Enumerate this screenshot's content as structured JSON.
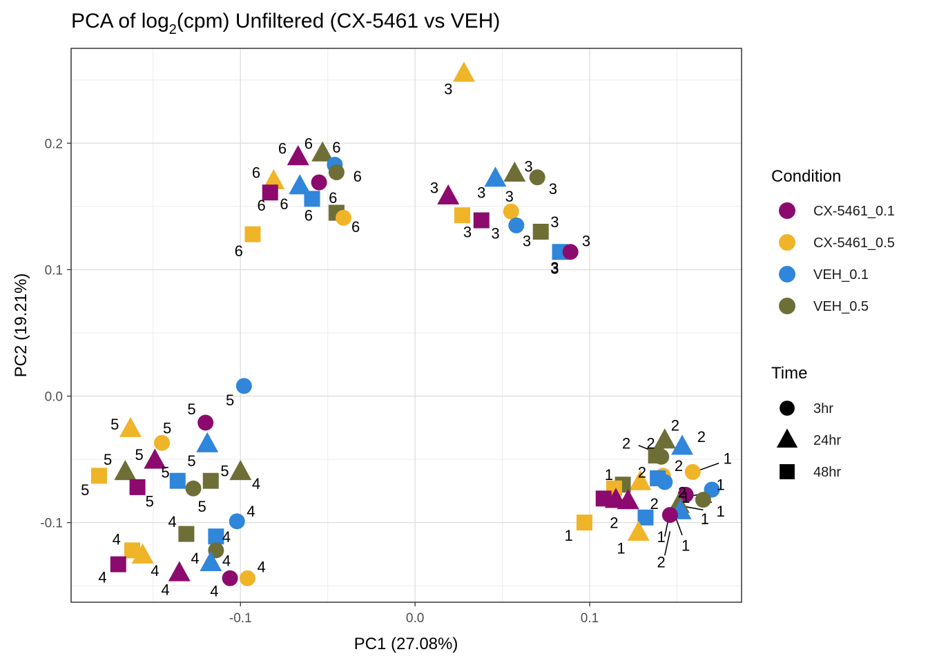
{
  "chart_data": {
    "type": "scatter",
    "title_main": "PCA of log",
    "title_sub": "2",
    "title_rest": "(cpm) Unfiltered (CX-5461 vs VEH)",
    "xlabel": "PC1 (27.08%)",
    "ylabel": "PC2 (19.21%)",
    "xlim": [
      -0.197,
      0.187
    ],
    "ylim": [
      -0.163,
      0.275
    ],
    "xticks": [
      -0.1,
      0.0,
      0.1
    ],
    "xtick_labels": [
      "-0.1",
      "0.0",
      "0.1"
    ],
    "yticks": [
      -0.1,
      0.0,
      0.1,
      0.2
    ],
    "ytick_labels": [
      "-0.1",
      "0.0",
      "0.1",
      "0.2"
    ],
    "grid": true,
    "legend": {
      "condition_title": "Condition",
      "conditions": [
        {
          "key": "CX1",
          "label": "CX-5461_0.1",
          "color": "#8C0A6E"
        },
        {
          "key": "CX5",
          "label": "CX-5461_0.5",
          "color": "#F0B429"
        },
        {
          "key": "V1",
          "label": "VEH_0.1",
          "color": "#2F86DB"
        },
        {
          "key": "V5",
          "label": "VEH_0.5",
          "color": "#6E6E37"
        }
      ],
      "time_title": "Time",
      "times": [
        {
          "key": "3hr",
          "label": "3hr",
          "shape": "circle"
        },
        {
          "key": "24hr",
          "label": "24hr",
          "shape": "triangle"
        },
        {
          "key": "48hr",
          "label": "48hr",
          "shape": "square"
        }
      ],
      "placement": "right"
    },
    "points": [
      {
        "x": 0.028,
        "y": 0.255,
        "c": "CX5",
        "t": "24hr",
        "l": "3"
      },
      {
        "x": 0.019,
        "y": 0.158,
        "c": "CX1",
        "t": "24hr",
        "l": "3"
      },
      {
        "x": 0.046,
        "y": 0.172,
        "c": "V1",
        "t": "24hr",
        "l": "3"
      },
      {
        "x": 0.057,
        "y": 0.176,
        "c": "V5",
        "t": "24hr",
        "l": "3"
      },
      {
        "x": 0.07,
        "y": 0.173,
        "c": "V5",
        "t": "3hr",
        "l": "3"
      },
      {
        "x": 0.055,
        "y": 0.146,
        "c": "CX5",
        "t": "3hr",
        "l": "3"
      },
      {
        "x": 0.027,
        "y": 0.143,
        "c": "CX5",
        "t": "48hr",
        "l": "3"
      },
      {
        "x": 0.038,
        "y": 0.139,
        "c": "CX1",
        "t": "48hr",
        "l": "3"
      },
      {
        "x": 0.058,
        "y": 0.135,
        "c": "V1",
        "t": "3hr",
        "l": "3"
      },
      {
        "x": 0.072,
        "y": 0.13,
        "c": "V5",
        "t": "48hr",
        "l": "3"
      },
      {
        "x": 0.083,
        "y": 0.114,
        "c": "V1",
        "t": "48hr",
        "l": "3"
      },
      {
        "x": 0.089,
        "y": 0.114,
        "c": "CX1",
        "t": "3hr",
        "l": "3"
      },
      {
        "x": -0.067,
        "y": 0.189,
        "c": "CX1",
        "t": "24hr",
        "l": "6"
      },
      {
        "x": -0.053,
        "y": 0.192,
        "c": "V5",
        "t": "24hr",
        "l": "6"
      },
      {
        "x": -0.046,
        "y": 0.183,
        "c": "V1",
        "t": "3hr",
        "l": "6"
      },
      {
        "x": -0.045,
        "y": 0.177,
        "c": "V5",
        "t": "3hr",
        "l": "6"
      },
      {
        "x": -0.081,
        "y": 0.17,
        "c": "CX5",
        "t": "24hr",
        "l": "6"
      },
      {
        "x": -0.055,
        "y": 0.169,
        "c": "CX1",
        "t": "3hr",
        "l": "6"
      },
      {
        "x": -0.066,
        "y": 0.166,
        "c": "V1",
        "t": "24hr",
        "l": "6"
      },
      {
        "x": -0.083,
        "y": 0.161,
        "c": "CX1",
        "t": "48hr",
        "l": "6"
      },
      {
        "x": -0.059,
        "y": 0.156,
        "c": "V1",
        "t": "48hr",
        "l": "6"
      },
      {
        "x": -0.045,
        "y": 0.145,
        "c": "V5",
        "t": "48hr",
        "l": "6"
      },
      {
        "x": -0.041,
        "y": 0.141,
        "c": "CX5",
        "t": "3hr",
        "l": "6"
      },
      {
        "x": -0.093,
        "y": 0.128,
        "c": "CX5",
        "t": "48hr",
        "l": "6"
      },
      {
        "x": -0.098,
        "y": 0.008,
        "c": "V1",
        "t": "3hr",
        "l": "5"
      },
      {
        "x": -0.12,
        "y": -0.021,
        "c": "CX1",
        "t": "3hr",
        "l": "5"
      },
      {
        "x": -0.163,
        "y": -0.026,
        "c": "CX5",
        "t": "24hr",
        "l": "5"
      },
      {
        "x": -0.145,
        "y": -0.037,
        "c": "CX5",
        "t": "3hr",
        "l": "5"
      },
      {
        "x": -0.119,
        "y": -0.038,
        "c": "V1",
        "t": "24hr",
        "l": "5"
      },
      {
        "x": -0.149,
        "y": -0.051,
        "c": "CX1",
        "t": "24hr",
        "l": "5"
      },
      {
        "x": -0.166,
        "y": -0.06,
        "c": "V5",
        "t": "24hr",
        "l": "5"
      },
      {
        "x": -0.181,
        "y": -0.063,
        "c": "CX5",
        "t": "48hr",
        "l": "5"
      },
      {
        "x": -0.136,
        "y": -0.067,
        "c": "V1",
        "t": "48hr",
        "l": "5"
      },
      {
        "x": -0.117,
        "y": -0.067,
        "c": "V5",
        "t": "48hr",
        "l": "5"
      },
      {
        "x": -0.159,
        "y": -0.072,
        "c": "CX1",
        "t": "48hr",
        "l": "5"
      },
      {
        "x": -0.127,
        "y": -0.073,
        "c": "V5",
        "t": "3hr",
        "l": "5"
      },
      {
        "x": -0.1,
        "y": -0.06,
        "c": "V5",
        "t": "24hr",
        "l": "4"
      },
      {
        "x": -0.102,
        "y": -0.099,
        "c": "V1",
        "t": "3hr",
        "l": "4"
      },
      {
        "x": -0.131,
        "y": -0.109,
        "c": "V5",
        "t": "48hr",
        "l": "4"
      },
      {
        "x": -0.114,
        "y": -0.111,
        "c": "V1",
        "t": "48hr",
        "l": "4"
      },
      {
        "x": -0.162,
        "y": -0.122,
        "c": "CX5",
        "t": "48hr",
        "l": "4"
      },
      {
        "x": -0.114,
        "y": -0.122,
        "c": "V5",
        "t": "3hr",
        "l": "4"
      },
      {
        "x": -0.156,
        "y": -0.126,
        "c": "CX5",
        "t": "24hr",
        "l": "4"
      },
      {
        "x": -0.117,
        "y": -0.132,
        "c": "V1",
        "t": "24hr",
        "l": "4"
      },
      {
        "x": -0.17,
        "y": -0.133,
        "c": "CX1",
        "t": "48hr",
        "l": "4"
      },
      {
        "x": -0.135,
        "y": -0.14,
        "c": "CX1",
        "t": "24hr",
        "l": "4"
      },
      {
        "x": -0.106,
        "y": -0.144,
        "c": "CX1",
        "t": "3hr",
        "l": "4"
      },
      {
        "x": -0.096,
        "y": -0.144,
        "c": "CX5",
        "t": "3hr",
        "l": "4"
      },
      {
        "x": 0.143,
        "y": -0.035,
        "c": "V5",
        "t": "24hr",
        "l": "2"
      },
      {
        "x": 0.153,
        "y": -0.04,
        "c": "V1",
        "t": "24hr",
        "l": "2"
      },
      {
        "x": 0.141,
        "y": -0.048,
        "c": "V5",
        "t": "3hr",
        "l": "2"
      },
      {
        "x": 0.138,
        "y": -0.047,
        "c": "V5",
        "t": "48hr",
        "l": "2"
      },
      {
        "x": 0.159,
        "y": -0.06,
        "c": "CX5",
        "t": "3hr",
        "l": "1"
      },
      {
        "x": 0.142,
        "y": -0.063,
        "c": "CX5",
        "t": "3hr",
        "l": "2"
      },
      {
        "x": 0.139,
        "y": -0.065,
        "c": "V1",
        "t": "48hr",
        "l": "2"
      },
      {
        "x": 0.143,
        "y": -0.068,
        "c": "V1",
        "t": "3hr",
        "l": "1"
      },
      {
        "x": 0.129,
        "y": -0.068,
        "c": "CX5",
        "t": "24hr",
        "l": "2"
      },
      {
        "x": 0.119,
        "y": -0.07,
        "c": "V5",
        "t": "48hr",
        "l": "1"
      },
      {
        "x": 0.114,
        "y": -0.073,
        "c": "CX5",
        "t": "48hr",
        "l": "1"
      },
      {
        "x": 0.17,
        "y": -0.074,
        "c": "V1",
        "t": "3hr",
        "l": "1"
      },
      {
        "x": 0.155,
        "y": -0.078,
        "c": "CX1",
        "t": "3hr",
        "l": "2"
      },
      {
        "x": 0.108,
        "y": -0.081,
        "c": "CX1",
        "t": "48hr",
        "l": "2"
      },
      {
        "x": 0.115,
        "y": -0.082,
        "c": "CX1",
        "t": "24hr",
        "l": "2"
      },
      {
        "x": 0.122,
        "y": -0.083,
        "c": "CX1",
        "t": "24hr",
        "l": "2"
      },
      {
        "x": 0.165,
        "y": -0.082,
        "c": "V5",
        "t": "3hr",
        "l": "1"
      },
      {
        "x": 0.151,
        "y": -0.086,
        "c": "V5",
        "t": "24hr",
        "l": "2"
      },
      {
        "x": 0.152,
        "y": -0.091,
        "c": "V1",
        "t": "24hr",
        "l": "1"
      },
      {
        "x": 0.146,
        "y": -0.094,
        "c": "CX1",
        "t": "3hr",
        "l": "1"
      },
      {
        "x": 0.132,
        "y": -0.096,
        "c": "V1",
        "t": "48hr",
        "l": "2"
      },
      {
        "x": 0.097,
        "y": -0.1,
        "c": "CX5",
        "t": "48hr",
        "l": "1"
      },
      {
        "x": 0.128,
        "y": -0.108,
        "c": "CX5",
        "t": "24hr",
        "l": "1"
      }
    ],
    "labels": [
      {
        "t": "3",
        "x": 0.019,
        "y": 0.243
      },
      {
        "t": "3",
        "x": 0.011,
        "y": 0.165
      },
      {
        "t": "3",
        "x": 0.038,
        "y": 0.161
      },
      {
        "t": "3",
        "x": 0.054,
        "y": 0.158
      },
      {
        "t": "3",
        "x": 0.065,
        "y": 0.182
      },
      {
        "t": "3",
        "x": 0.079,
        "y": 0.164
      },
      {
        "t": "3",
        "x": 0.03,
        "y": 0.13
      },
      {
        "t": "3",
        "x": 0.046,
        "y": 0.129
      },
      {
        "t": "3",
        "x": 0.064,
        "y": 0.123
      },
      {
        "t": "3",
        "x": 0.08,
        "y": 0.138
      },
      {
        "t": "3",
        "x": 0.08,
        "y": 0.101
      },
      {
        "t": "3",
        "x": 0.098,
        "y": 0.123
      },
      {
        "t": "3",
        "x": 0.08,
        "y": 0.102
      },
      {
        "t": "6",
        "x": -0.076,
        "y": 0.196
      },
      {
        "t": "6",
        "x": -0.061,
        "y": 0.2
      },
      {
        "t": "6",
        "x": -0.045,
        "y": 0.197
      },
      {
        "t": "6",
        "x": -0.033,
        "y": 0.174
      },
      {
        "t": "6",
        "x": -0.091,
        "y": 0.177
      },
      {
        "t": "6",
        "x": -0.047,
        "y": 0.157
      },
      {
        "t": "6",
        "x": -0.088,
        "y": 0.151
      },
      {
        "t": "6",
        "x": -0.075,
        "y": 0.152
      },
      {
        "t": "6",
        "x": -0.061,
        "y": 0.143
      },
      {
        "t": "6",
        "x": -0.034,
        "y": 0.134
      },
      {
        "t": "6",
        "x": -0.101,
        "y": 0.115
      },
      {
        "t": "5",
        "x": -0.106,
        "y": -0.003
      },
      {
        "t": "5",
        "x": -0.128,
        "y": -0.01
      },
      {
        "t": "5",
        "x": -0.172,
        "y": -0.022
      },
      {
        "t": "5",
        "x": -0.142,
        "y": -0.025
      },
      {
        "t": "5",
        "x": -0.128,
        "y": -0.051
      },
      {
        "t": "5",
        "x": -0.158,
        "y": -0.046
      },
      {
        "t": "5",
        "x": -0.176,
        "y": -0.05
      },
      {
        "t": "5",
        "x": -0.189,
        "y": -0.074
      },
      {
        "t": "5",
        "x": -0.143,
        "y": -0.06
      },
      {
        "t": "5",
        "x": -0.109,
        "y": -0.059
      },
      {
        "t": "5",
        "x": -0.152,
        "y": -0.083
      },
      {
        "t": "5",
        "x": -0.122,
        "y": -0.087
      },
      {
        "t": "4",
        "x": -0.091,
        "y": -0.069
      },
      {
        "t": "4",
        "x": -0.094,
        "y": -0.091
      },
      {
        "t": "4",
        "x": -0.139,
        "y": -0.099
      },
      {
        "t": "4",
        "x": -0.108,
        "y": -0.111
      },
      {
        "t": "4",
        "x": -0.171,
        "y": -0.113
      },
      {
        "t": "4",
        "x": -0.126,
        "y": -0.128
      },
      {
        "t": "4",
        "x": -0.149,
        "y": -0.138
      },
      {
        "t": "4",
        "x": -0.108,
        "y": -0.13
      },
      {
        "t": "4",
        "x": -0.179,
        "y": -0.143
      },
      {
        "t": "4",
        "x": -0.143,
        "y": -0.153
      },
      {
        "t": "4",
        "x": -0.115,
        "y": -0.154
      },
      {
        "t": "4",
        "x": -0.088,
        "y": -0.135
      },
      {
        "t": "2",
        "x": 0.149,
        "y": -0.023
      },
      {
        "t": "2",
        "x": 0.164,
        "y": -0.032
      },
      {
        "t": "2",
        "x": 0.121,
        "y": -0.037
      },
      {
        "t": "2",
        "x": 0.135,
        "y": -0.037
      },
      {
        "t": "1",
        "x": 0.179,
        "y": -0.049
      },
      {
        "t": "2",
        "x": 0.151,
        "y": -0.055
      },
      {
        "t": "2",
        "x": 0.13,
        "y": -0.06
      },
      {
        "t": "1",
        "x": 0.111,
        "y": -0.062
      },
      {
        "t": "2",
        "x": 0.153,
        "y": -0.076
      },
      {
        "t": "2",
        "x": 0.114,
        "y": -0.1
      },
      {
        "t": "2",
        "x": 0.137,
        "y": -0.085
      },
      {
        "t": "1",
        "x": 0.175,
        "y": -0.07
      },
      {
        "t": "1",
        "x": 0.175,
        "y": -0.091
      },
      {
        "t": "1",
        "x": 0.166,
        "y": -0.097
      },
      {
        "t": "1",
        "x": 0.141,
        "y": -0.111
      },
      {
        "t": "1",
        "x": 0.155,
        "y": -0.118
      },
      {
        "t": "1",
        "x": 0.118,
        "y": -0.12
      },
      {
        "t": "1",
        "x": 0.088,
        "y": -0.11
      },
      {
        "t": "2",
        "x": 0.141,
        "y": -0.131
      },
      {
        "t": "1",
        "x": 0.155,
        "y": -0.08
      }
    ],
    "connectors": [
      [
        0.128,
        -0.039,
        0.139,
        -0.045
      ],
      [
        0.174,
        -0.053,
        0.162,
        -0.059
      ],
      [
        0.162,
        -0.078,
        0.153,
        -0.08
      ],
      [
        0.165,
        -0.09,
        0.153,
        -0.087
      ],
      [
        0.143,
        -0.111,
        0.145,
        -0.098
      ],
      [
        0.149,
        -0.095,
        0.153,
        -0.11
      ],
      [
        0.143,
        -0.126,
        0.146,
        -0.107
      ],
      [
        0.17,
        -0.084,
        0.167,
        -0.083
      ]
    ]
  }
}
